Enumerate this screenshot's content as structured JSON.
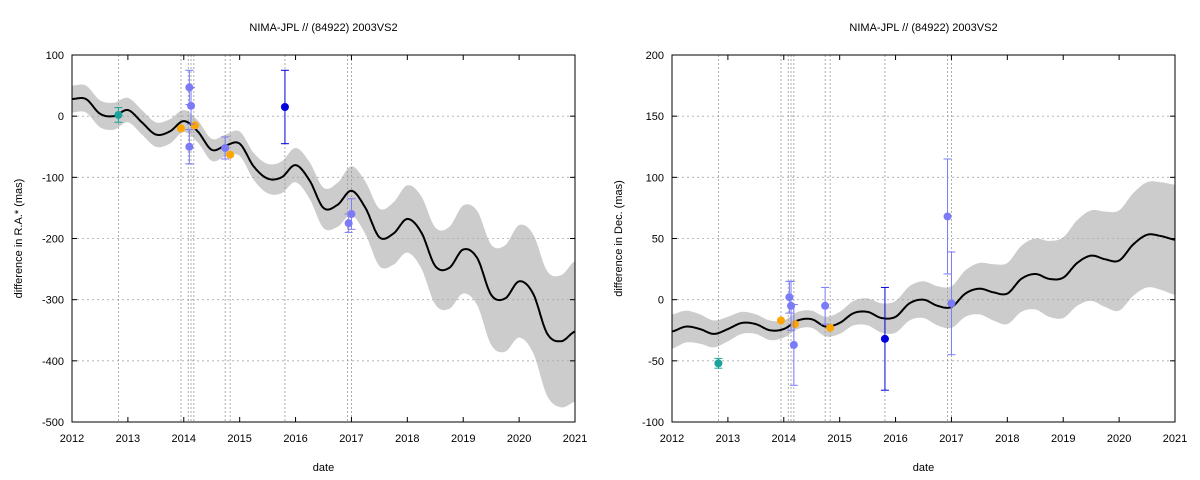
{
  "chart_data": [
    {
      "type": "line",
      "title": "NIMA-JPL // (84922) 2003VS2",
      "xlabel": "date",
      "ylabel": "difference in R.A.* (mas)",
      "xlim": [
        2012,
        2021
      ],
      "ylim": [
        -500,
        100
      ],
      "x_ticks": [
        2012,
        2013,
        2014,
        2015,
        2016,
        2017,
        2018,
        2019,
        2020,
        2021
      ],
      "y_ticks": [
        -500,
        -400,
        -300,
        -200,
        -100,
        0,
        100
      ],
      "grid": true,
      "vlines": [
        2012.83,
        2013.95,
        2014.08,
        2014.13,
        2014.18,
        2014.74,
        2014.83,
        2015.81,
        2016.93,
        2017.0
      ],
      "colors": {
        "curve": "#000000",
        "band": "#cccccc",
        "teal": "#1aa39a",
        "orange": "#ffa500",
        "lightblue": "#7b7bf7",
        "blue": "#0000dd",
        "grid": "#aaaaaa"
      },
      "model_curve": {
        "x": [
          2012.0,
          2012.25,
          2012.5,
          2012.75,
          2013.0,
          2013.25,
          2013.5,
          2013.75,
          2014.0,
          2014.25,
          2014.5,
          2014.75,
          2015.0,
          2015.25,
          2015.5,
          2015.75,
          2016.0,
          2016.25,
          2016.5,
          2016.75,
          2017.0,
          2017.25,
          2017.5,
          2017.75,
          2018.0,
          2018.25,
          2018.5,
          2018.75,
          2019.0,
          2019.25,
          2019.5,
          2019.75,
          2020.0,
          2020.25,
          2020.5,
          2020.75,
          2021.0
        ],
        "y": [
          28,
          28,
          4,
          0,
          10,
          -10,
          -30,
          -25,
          -8,
          -25,
          -55,
          -48,
          -45,
          -82,
          -102,
          -100,
          -80,
          -105,
          -150,
          -145,
          -122,
          -150,
          -198,
          -192,
          -168,
          -190,
          -245,
          -248,
          -218,
          -232,
          -292,
          -298,
          -270,
          -290,
          -355,
          -368,
          -352
        ],
        "band_halfwidth": [
          22,
          22,
          22,
          22,
          20,
          20,
          20,
          20,
          18,
          18,
          18,
          18,
          20,
          22,
          24,
          26,
          28,
          30,
          33,
          36,
          40,
          43,
          47,
          51,
          55,
          59,
          63,
          67,
          72,
          77,
          82,
          87,
          92,
          97,
          102,
          108,
          115
        ]
      },
      "observations": [
        {
          "x": 2012.83,
          "y": 2,
          "err": 12,
          "color": "#1aa39a"
        },
        {
          "x": 2013.95,
          "y": -20,
          "err": 0,
          "color": "#ffa500"
        },
        {
          "x": 2014.2,
          "y": -15,
          "err": 0,
          "color": "#ffa500"
        },
        {
          "x": 2014.83,
          "y": -63,
          "err": 0,
          "color": "#ffa500"
        },
        {
          "x": 2014.1,
          "y": 47,
          "err": 28,
          "color": "#7b7bf7"
        },
        {
          "x": 2014.13,
          "y": 17,
          "err": 30,
          "color": "#7b7bf7"
        },
        {
          "x": 2014.1,
          "y": -50,
          "err": 28,
          "color": "#7b7bf7"
        },
        {
          "x": 2014.74,
          "y": -52,
          "err": 18,
          "color": "#7b7bf7"
        },
        {
          "x": 2016.95,
          "y": -175,
          "err": 15,
          "color": "#7b7bf7"
        },
        {
          "x": 2017.0,
          "y": -160,
          "err": 25,
          "color": "#7b7bf7"
        },
        {
          "x": 2015.81,
          "y": 15,
          "err": 60,
          "color": "#0000dd"
        }
      ]
    },
    {
      "type": "line",
      "title": "NIMA-JPL // (84922) 2003VS2",
      "xlabel": "date",
      "ylabel": "difference in Dec. (mas)",
      "xlim": [
        2012,
        2021
      ],
      "ylim": [
        -100,
        200
      ],
      "x_ticks": [
        2012,
        2013,
        2014,
        2015,
        2016,
        2017,
        2018,
        2019,
        2020,
        2021
      ],
      "y_ticks": [
        -100,
        -50,
        0,
        50,
        100,
        150,
        200
      ],
      "grid": true,
      "vlines": [
        2012.83,
        2013.95,
        2014.08,
        2014.13,
        2014.18,
        2014.74,
        2014.83,
        2015.81,
        2016.93,
        2017.0
      ],
      "colors": {
        "curve": "#000000",
        "band": "#cccccc",
        "teal": "#1aa39a",
        "orange": "#ffa500",
        "lightblue": "#7b7bf7",
        "blue": "#0000dd",
        "grid": "#aaaaaa"
      },
      "model_curve": {
        "x": [
          2012.0,
          2012.25,
          2012.5,
          2012.75,
          2013.0,
          2013.25,
          2013.5,
          2013.75,
          2014.0,
          2014.25,
          2014.5,
          2014.75,
          2015.0,
          2015.25,
          2015.5,
          2015.75,
          2016.0,
          2016.25,
          2016.5,
          2016.75,
          2017.0,
          2017.25,
          2017.5,
          2017.75,
          2018.0,
          2018.25,
          2018.5,
          2018.75,
          2019.0,
          2019.25,
          2019.5,
          2019.75,
          2020.0,
          2020.25,
          2020.5,
          2020.75,
          2021.0
        ],
        "y": [
          -26,
          -22,
          -24,
          -28,
          -24,
          -19,
          -20,
          -25,
          -24,
          -17,
          -16,
          -22,
          -19,
          -11,
          -10,
          -15,
          -14,
          -3,
          0,
          -5,
          -6,
          5,
          9,
          6,
          5,
          17,
          21,
          17,
          18,
          30,
          36,
          33,
          32,
          45,
          53,
          52,
          49
        ],
        "band_halfwidth": [
          14,
          13,
          12,
          11,
          10,
          9,
          8,
          8,
          7,
          7,
          7,
          8,
          9,
          10,
          11,
          12,
          13,
          14,
          15,
          16,
          17,
          19,
          21,
          23,
          25,
          27,
          29,
          31,
          33,
          35,
          37,
          39,
          41,
          42,
          43,
          44,
          45
        ]
      },
      "observations": [
        {
          "x": 2012.83,
          "y": -52,
          "err": 4,
          "color": "#1aa39a"
        },
        {
          "x": 2013.95,
          "y": -17,
          "err": 0,
          "color": "#ffa500"
        },
        {
          "x": 2014.2,
          "y": -20,
          "err": 0,
          "color": "#ffa500"
        },
        {
          "x": 2014.83,
          "y": -23,
          "err": 0,
          "color": "#ffa500"
        },
        {
          "x": 2014.1,
          "y": 2,
          "err": 13,
          "color": "#7b7bf7"
        },
        {
          "x": 2014.13,
          "y": -5,
          "err": 20,
          "color": "#7b7bf7"
        },
        {
          "x": 2014.18,
          "y": -37,
          "err": 33,
          "color": "#7b7bf7"
        },
        {
          "x": 2014.74,
          "y": -5,
          "err": 15,
          "color": "#7b7bf7"
        },
        {
          "x": 2016.93,
          "y": 68,
          "err": 47,
          "color": "#7b7bf7"
        },
        {
          "x": 2017.0,
          "y": -3,
          "err": 42,
          "color": "#7b7bf7"
        },
        {
          "x": 2015.81,
          "y": -32,
          "err": 42,
          "color": "#0000dd"
        }
      ]
    }
  ]
}
